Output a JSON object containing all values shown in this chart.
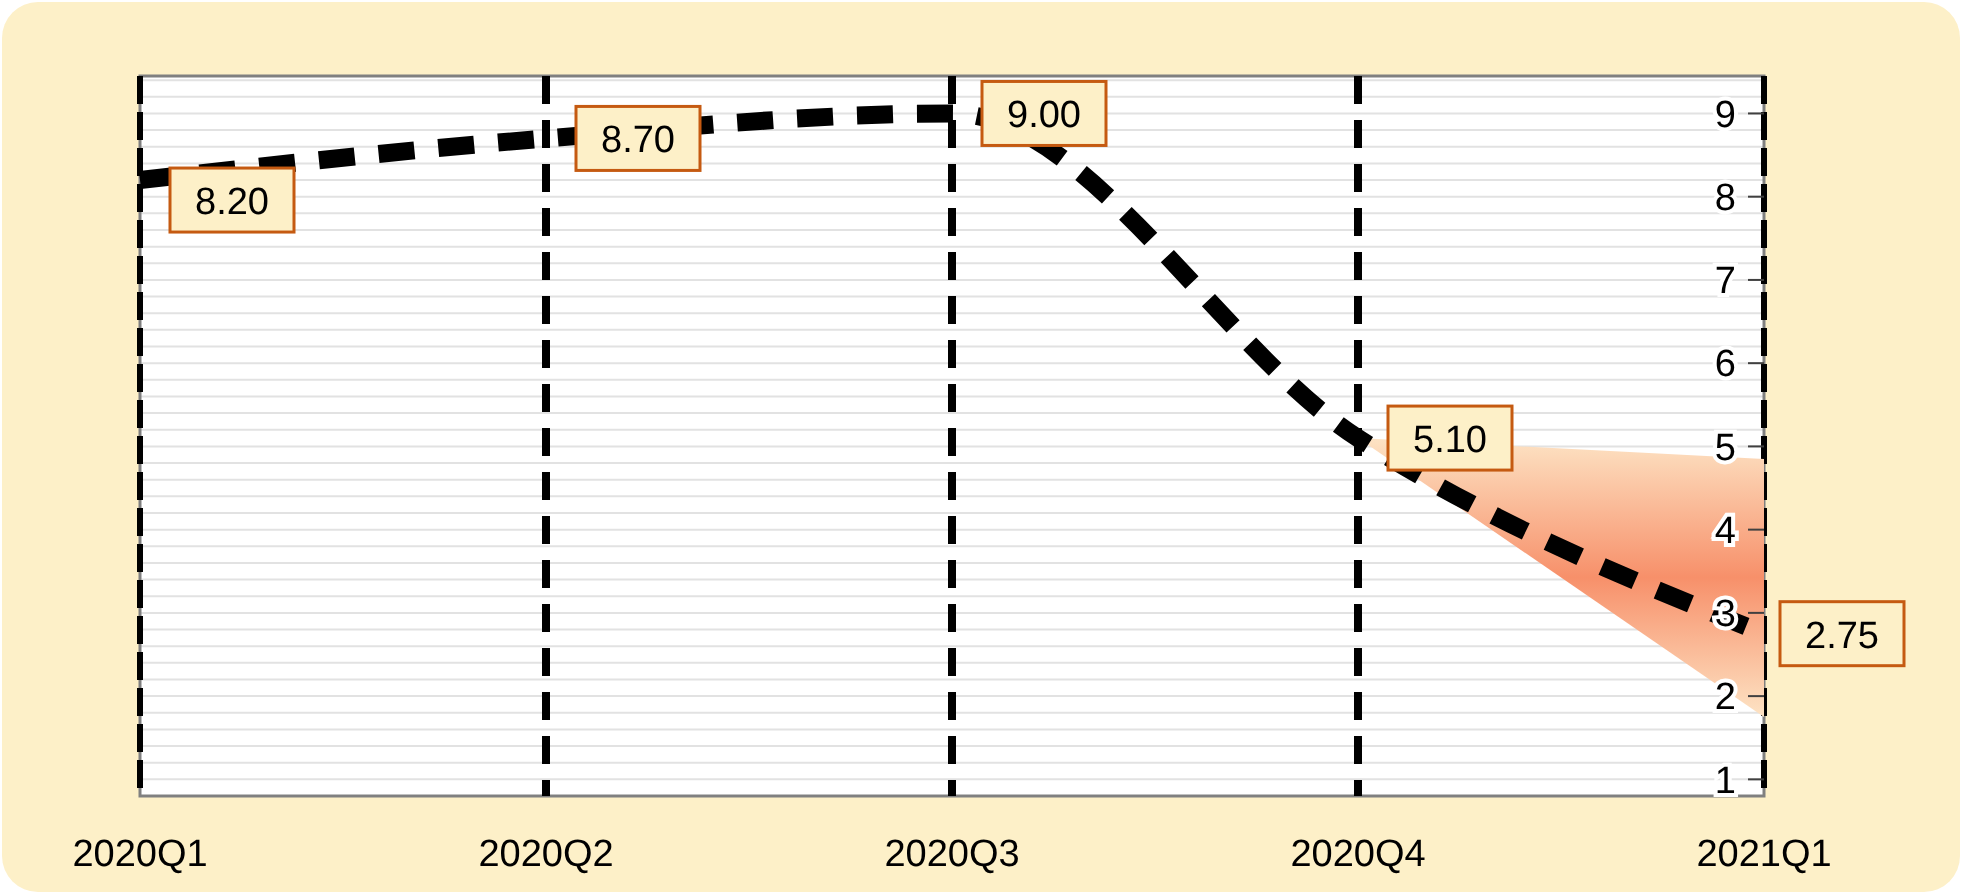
{
  "chart_data": {
    "type": "line",
    "categories": [
      "2020Q1",
      "2020Q2",
      "2020Q3",
      "2020Q4",
      "2021Q1"
    ],
    "series": [
      {
        "color": "#000000",
        "values": [
          8.2,
          8.7,
          9.0,
          5.1,
          2.75
        ],
        "value_labels": [
          "8.20",
          "8.70",
          "9.00",
          "5.10",
          "2.75"
        ],
        "lower": [
          null,
          null,
          null,
          5.1,
          1.75
        ],
        "upper": [
          null,
          null,
          null,
          5.1,
          4.85
        ]
      }
    ],
    "ylim": [
      0.8,
      9.45
    ],
    "yticks": [
      1,
      2,
      3,
      4,
      5,
      6,
      7,
      8,
      9
    ],
    "grid": "y",
    "line_style": "dashed",
    "marker": "none",
    "ref_lines": [
      {
        "axis": "x",
        "value": "2020Q2",
        "line_style": "dashed",
        "color": "#000000"
      },
      {
        "axis": "x",
        "value": "2020Q3",
        "line_style": "dashed",
        "color": "#000000"
      },
      {
        "axis": "x",
        "value": "2020Q4",
        "line_style": "dashed",
        "color": "#000000"
      }
    ]
  }
}
